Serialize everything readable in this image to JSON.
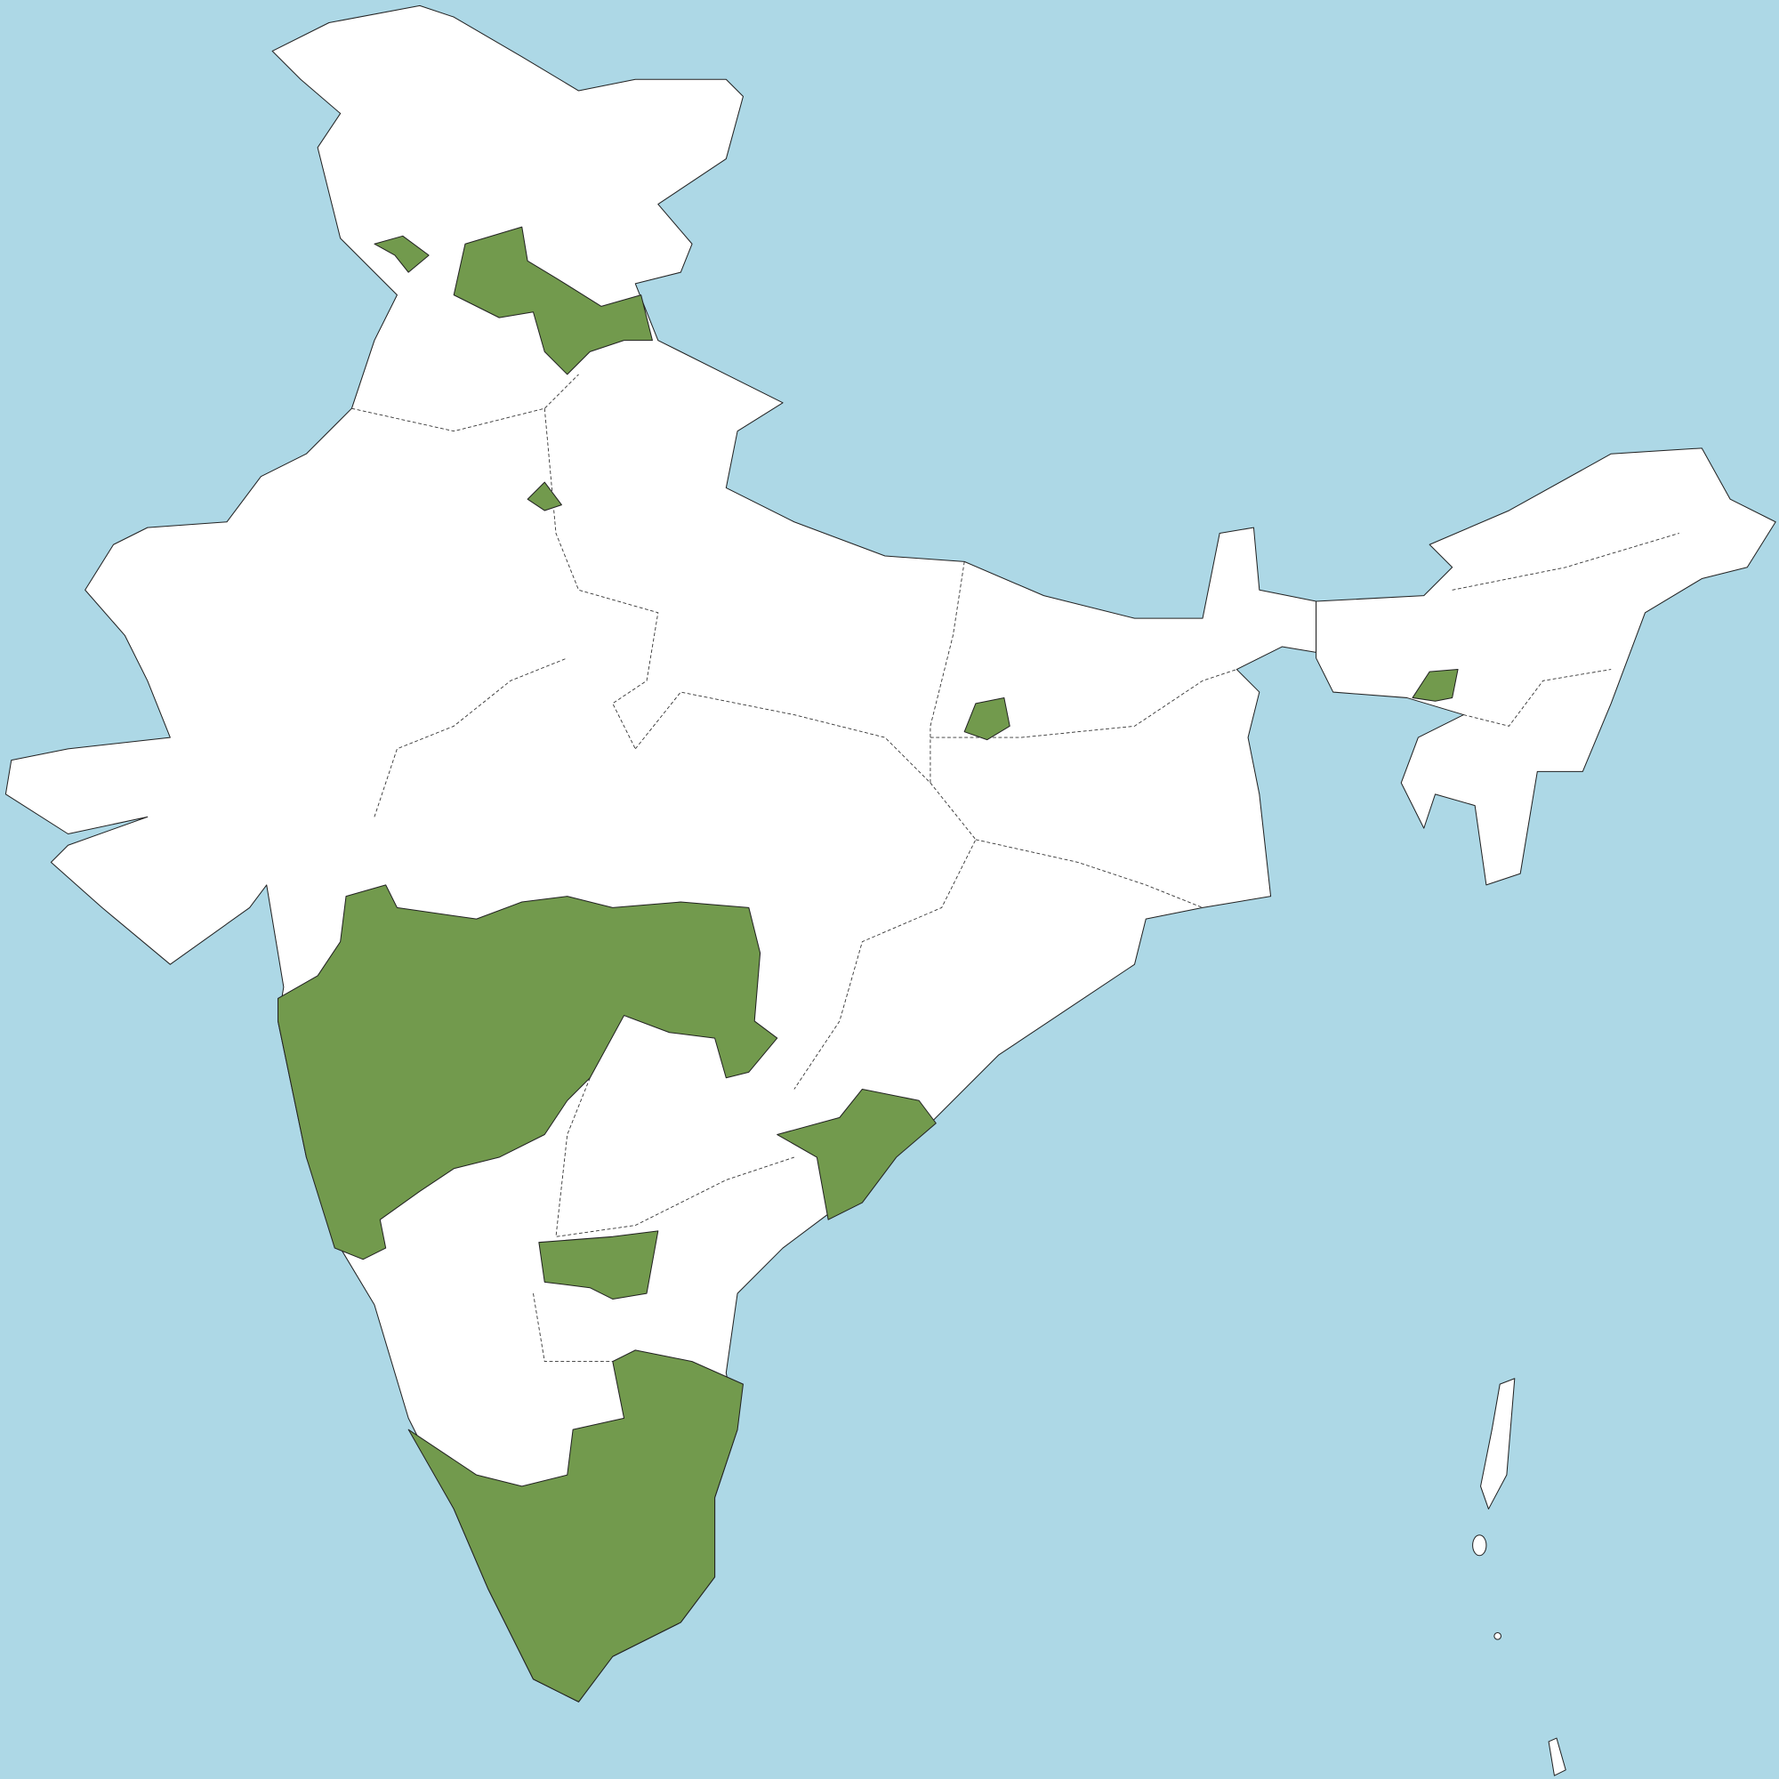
{
  "map": {
    "type": "choropleth",
    "colors": {
      "sea": "#ADD8E6",
      "land": "#FFFFFF",
      "highlighted": "#729A4D",
      "border": "#222222"
    }
  }
}
